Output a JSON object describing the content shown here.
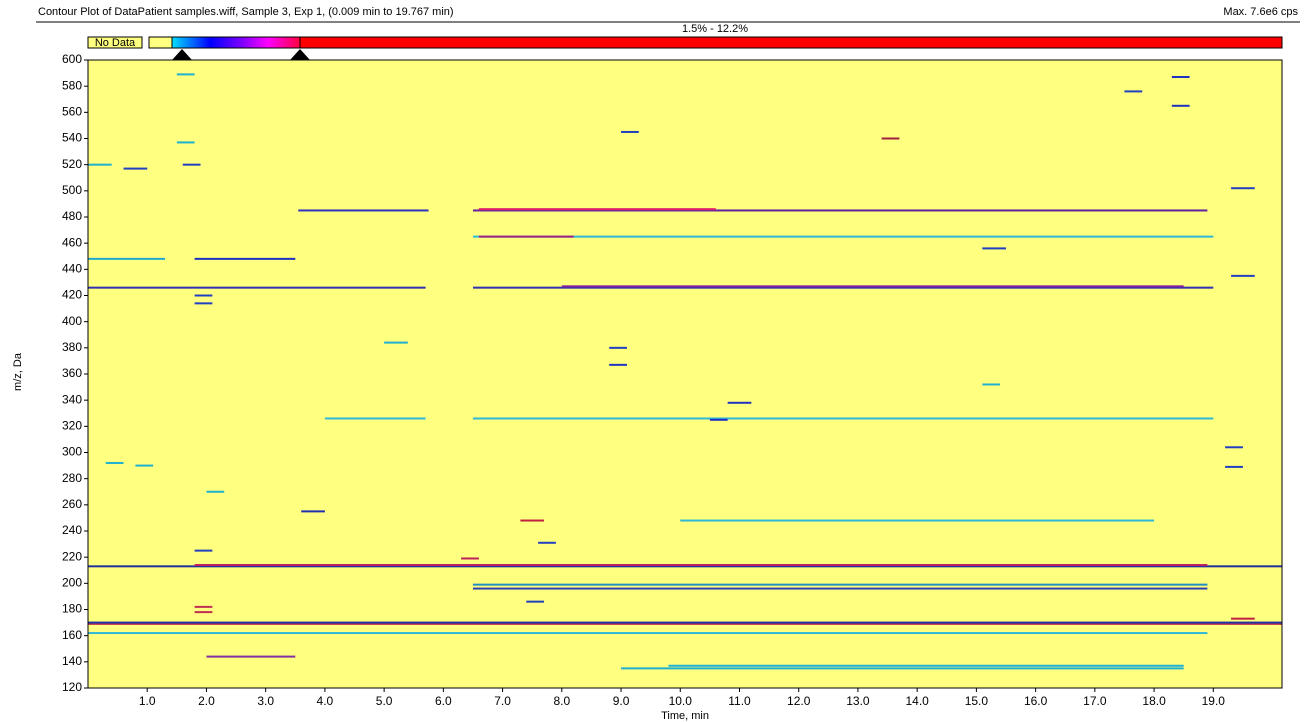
{
  "chart_data": {
    "type": "contour",
    "title": "Contour Plot of DataPatient samples.wiff, Sample 3, Exp 1, (0.009 min to 19.767 min)",
    "max_label": "Max. 7.6e6 cps",
    "no_data_label": "No Data",
    "range_label": "1.5% - 12.2%",
    "xlabel": "Time, min",
    "ylabel": "m/z, Da",
    "background": "#ffff80",
    "xlim": [
      0,
      20.16
    ],
    "ylim": [
      120,
      600
    ],
    "xticks": [
      {
        "value": 1,
        "label": "1.0"
      },
      {
        "value": 2,
        "label": "2.0"
      },
      {
        "value": 3,
        "label": "3.0"
      },
      {
        "value": 4,
        "label": "4.0"
      },
      {
        "value": 5,
        "label": "5.0"
      },
      {
        "value": 6,
        "label": "6.0"
      },
      {
        "value": 7,
        "label": "7.0"
      },
      {
        "value": 8,
        "label": "8.0"
      },
      {
        "value": 9,
        "label": "9.0"
      },
      {
        "value": 10,
        "label": "10.0"
      },
      {
        "value": 11,
        "label": "11.0"
      },
      {
        "value": 12,
        "label": "12.0"
      },
      {
        "value": 13,
        "label": "13.0"
      },
      {
        "value": 14,
        "label": "14.0"
      },
      {
        "value": 15,
        "label": "15.0"
      },
      {
        "value": 16,
        "label": "16.0"
      },
      {
        "value": 17,
        "label": "17.0"
      },
      {
        "value": 18,
        "label": "18.0"
      },
      {
        "value": 19,
        "label": "19.0"
      }
    ],
    "yticks": [
      120,
      140,
      160,
      180,
      200,
      220,
      240,
      260,
      280,
      300,
      320,
      340,
      360,
      380,
      400,
      420,
      440,
      460,
      480,
      500,
      520,
      540,
      560,
      580,
      600
    ],
    "streaks": [
      {
        "mz": 485,
        "start": 3.55,
        "end": 5.75,
        "color": "#3030c0"
      },
      {
        "mz": 485,
        "start": 6.5,
        "end": 18.9,
        "color": "#6020a0"
      },
      {
        "mz": 486,
        "start": 6.6,
        "end": 10.6,
        "color": "#e0206a"
      },
      {
        "mz": 426,
        "start": 0,
        "end": 5.7,
        "color": "#3030b0"
      },
      {
        "mz": 426,
        "start": 6.5,
        "end": 19.0,
        "color": "#3030b0"
      },
      {
        "mz": 427,
        "start": 8,
        "end": 18.5,
        "color": "#8020a0"
      },
      {
        "mz": 448,
        "start": 0,
        "end": 1.3,
        "color": "#20a8d0"
      },
      {
        "mz": 448,
        "start": 1.8,
        "end": 3.5,
        "color": "#2030c0"
      },
      {
        "mz": 465,
        "start": 6.5,
        "end": 19.0,
        "color": "#30b8d8"
      },
      {
        "mz": 465,
        "start": 6.6,
        "end": 8.2,
        "color": "#a02080"
      },
      {
        "mz": 213,
        "start": 0,
        "end": 20.16,
        "color": "#2030a0"
      },
      {
        "mz": 214,
        "start": 1.8,
        "end": 18.9,
        "color": "#c02060"
      },
      {
        "mz": 169,
        "start": 0,
        "end": 20.16,
        "color": "#c03050"
      },
      {
        "mz": 170,
        "start": 0,
        "end": 20.16,
        "color": "#2030a0"
      },
      {
        "mz": 196,
        "start": 6.5,
        "end": 18.9,
        "color": "#3040b0"
      },
      {
        "mz": 199,
        "start": 6.5,
        "end": 18.9,
        "color": "#2090c0"
      },
      {
        "mz": 135,
        "start": 9,
        "end": 18.5,
        "color": "#20b0d0"
      },
      {
        "mz": 137,
        "start": 9.8,
        "end": 18.5,
        "color": "#20b0d0"
      },
      {
        "mz": 248,
        "start": 10,
        "end": 18,
        "color": "#30b8d8"
      },
      {
        "mz": 326,
        "start": 4,
        "end": 5.7,
        "color": "#30b8d8"
      },
      {
        "mz": 326,
        "start": 6.5,
        "end": 19,
        "color": "#30b8d8"
      },
      {
        "mz": 162,
        "start": 0,
        "end": 18.9,
        "color": "#30b8d8"
      },
      {
        "mz": 144,
        "start": 2,
        "end": 3.5,
        "color": "#8030a0"
      },
      {
        "mz": 520,
        "start": 0,
        "end": 0.4,
        "color": "#20b0d0"
      },
      {
        "mz": 517,
        "start": 0.6,
        "end": 1.0,
        "color": "#2040c0"
      },
      {
        "mz": 589,
        "start": 1.5,
        "end": 1.8,
        "color": "#20b0d0"
      },
      {
        "mz": 537,
        "start": 1.5,
        "end": 1.8,
        "color": "#20b0d0"
      },
      {
        "mz": 587,
        "start": 18.3,
        "end": 18.6,
        "color": "#2030c0"
      },
      {
        "mz": 565,
        "start": 18.3,
        "end": 18.6,
        "color": "#2030c0"
      },
      {
        "mz": 540,
        "start": 13.4,
        "end": 13.7,
        "color": "#a02040"
      },
      {
        "mz": 545,
        "start": 9,
        "end": 9.3,
        "color": "#2040c0"
      },
      {
        "mz": 380,
        "start": 8.8,
        "end": 9.1,
        "color": "#2040c0"
      },
      {
        "mz": 367,
        "start": 8.8,
        "end": 9.1,
        "color": "#2030c0"
      },
      {
        "mz": 338,
        "start": 10.8,
        "end": 11.2,
        "color": "#2030c0"
      },
      {
        "mz": 325,
        "start": 10.5,
        "end": 10.8,
        "color": "#2030c0"
      },
      {
        "mz": 255,
        "start": 3.6,
        "end": 4.0,
        "color": "#2030b0"
      },
      {
        "mz": 290,
        "start": 0.8,
        "end": 1.1,
        "color": "#20b0d0"
      },
      {
        "mz": 289,
        "start": 19.2,
        "end": 19.5,
        "color": "#2040c0"
      },
      {
        "mz": 304,
        "start": 19.2,
        "end": 19.5,
        "color": "#2040c0"
      },
      {
        "mz": 248,
        "start": 7.3,
        "end": 7.7,
        "color": "#c02040"
      },
      {
        "mz": 231,
        "start": 7.6,
        "end": 7.9,
        "color": "#2040c0"
      },
      {
        "mz": 225,
        "start": 1.8,
        "end": 2.1,
        "color": "#2040c0"
      },
      {
        "mz": 219,
        "start": 6.3,
        "end": 6.6,
        "color": "#c02060"
      },
      {
        "mz": 182,
        "start": 1.8,
        "end": 2.1,
        "color": "#c03050"
      },
      {
        "mz": 178,
        "start": 1.8,
        "end": 2.1,
        "color": "#c03050"
      },
      {
        "mz": 186,
        "start": 7.4,
        "end": 7.7,
        "color": "#2040c0"
      },
      {
        "mz": 420,
        "start": 1.8,
        "end": 2.1,
        "color": "#2040c0"
      },
      {
        "mz": 414,
        "start": 1.8,
        "end": 2.1,
        "color": "#2040c0"
      },
      {
        "mz": 502,
        "start": 19.3,
        "end": 19.7,
        "color": "#2040c0"
      },
      {
        "mz": 435,
        "start": 19.3,
        "end": 19.7,
        "color": "#2040c0"
      },
      {
        "mz": 456,
        "start": 15.1,
        "end": 15.5,
        "color": "#2040c0"
      },
      {
        "mz": 292,
        "start": 0.3,
        "end": 0.6,
        "color": "#20b0d0"
      },
      {
        "mz": 270,
        "start": 2.0,
        "end": 2.3,
        "color": "#20b0d0"
      },
      {
        "mz": 384,
        "start": 5.0,
        "end": 5.4,
        "color": "#20b0d0"
      },
      {
        "mz": 173,
        "start": 19.3,
        "end": 19.7,
        "color": "#c02040"
      },
      {
        "mz": 576,
        "start": 17.5,
        "end": 17.8,
        "color": "#2040c0"
      },
      {
        "mz": 352,
        "start": 15.1,
        "end": 15.4,
        "color": "#20b0d0"
      },
      {
        "mz": 520,
        "start": 1.6,
        "end": 1.9,
        "color": "#2040c0"
      }
    ]
  }
}
